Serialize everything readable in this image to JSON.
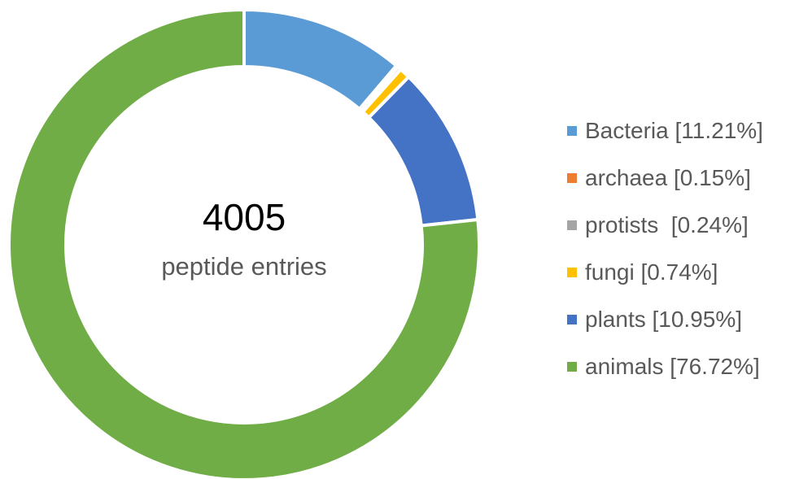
{
  "chart_data": {
    "type": "pie",
    "center_total": "4005",
    "center_caption": "peptide entries",
    "legend_position": "right",
    "series": [
      {
        "name": "Bacteria",
        "legend_label": "Bacteria [11.21%]",
        "value": 11.21,
        "color": "#5B9BD5"
      },
      {
        "name": "archaea",
        "legend_label": "archaea [0.15%]",
        "value": 0.15,
        "color": "#ED7D31"
      },
      {
        "name": "protists",
        "legend_label": "protists  [0.24%]",
        "value": 0.24,
        "color": "#A5A5A5"
      },
      {
        "name": "fungi",
        "legend_label": "fungi [0.74%]",
        "value": 0.74,
        "color": "#FFC000"
      },
      {
        "name": "plants",
        "legend_label": "plants [10.95%]",
        "value": 10.95,
        "color": "#4472C4"
      },
      {
        "name": "animals",
        "legend_label": "animals [76.72%]",
        "value": 76.72,
        "color": "#70AD47"
      }
    ]
  }
}
